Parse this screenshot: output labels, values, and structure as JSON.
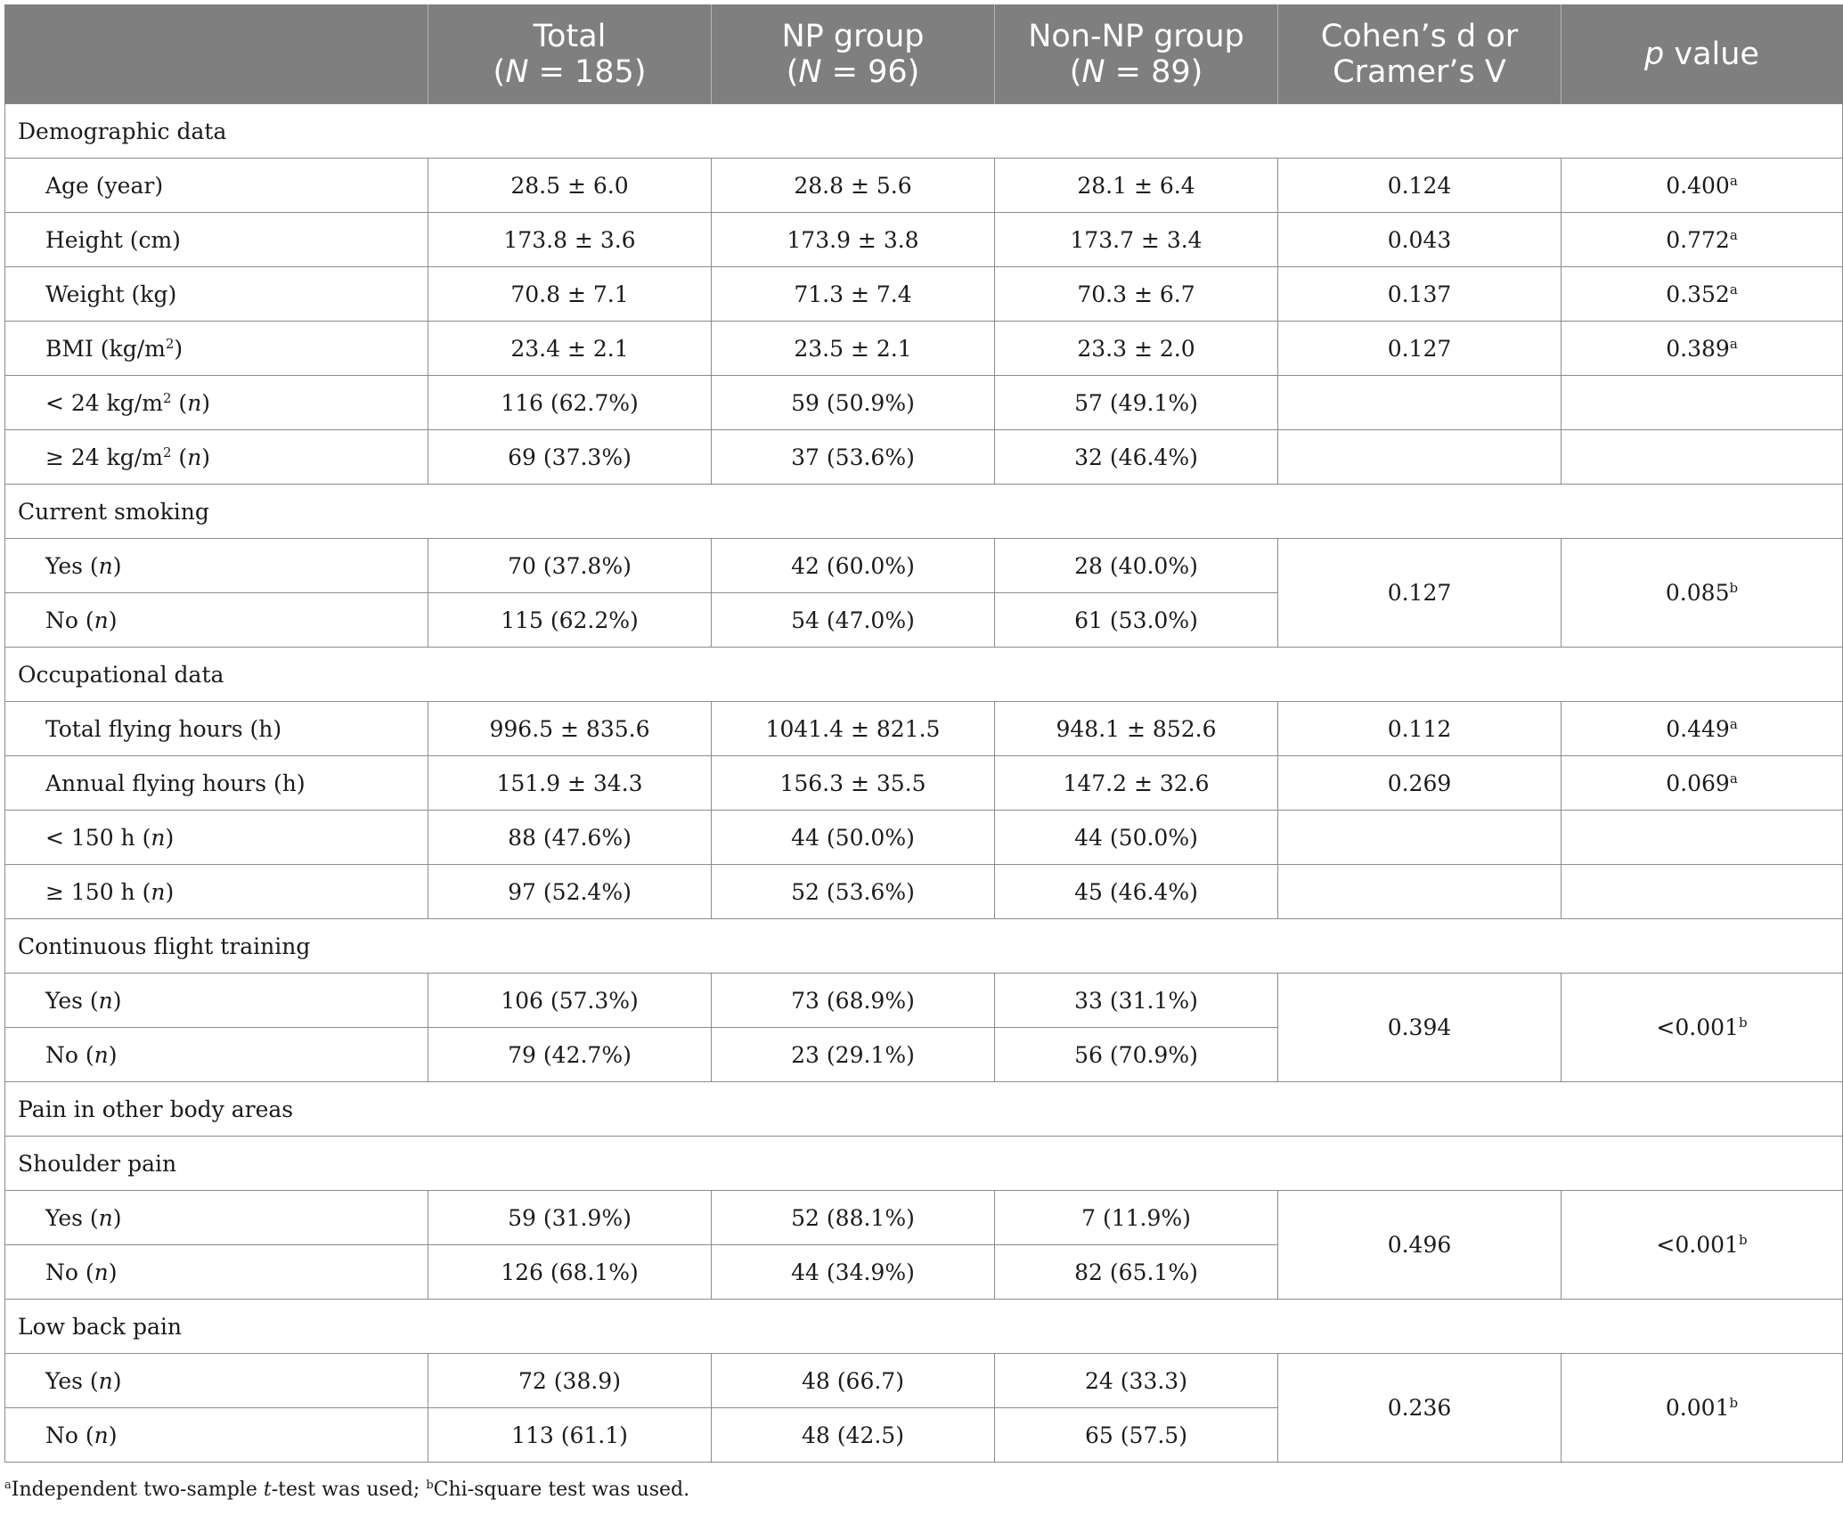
{
  "header": {
    "c0": "",
    "total_label": "Total",
    "total_n_pre": "(",
    "n_symbol": "N",
    "total_n_post": " = 185)",
    "np_label": "NP group",
    "np_n_post": " = 96)",
    "nonnp_label": "Non-NP group",
    "nonnp_n_post": " = 89)",
    "effect_line1": "Cohen’s d or",
    "effect_line2": "Cramer’s V",
    "p_symbol": "p",
    "p_rest": " value"
  },
  "sections": {
    "demographic": "Demographic data",
    "smoking": "Current smoking",
    "occupational": "Occupational data",
    "continuous": "Continuous flight training",
    "pain_other": "Pain in other body areas",
    "shoulder": "Shoulder pain",
    "lowback": "Low back pain"
  },
  "rows": {
    "age": {
      "label": "Age (year)",
      "total": "28.5 ± 6.0",
      "np": "28.8 ± 5.6",
      "nonnp": "28.1 ± 6.4",
      "effect": "0.124",
      "p": "0.400",
      "sup": "a"
    },
    "height": {
      "label": "Height (cm)",
      "total": "173.8 ± 3.6",
      "np": "173.9 ± 3.8",
      "nonnp": "173.7 ± 3.4",
      "effect": "0.043",
      "p": "0.772",
      "sup": "a"
    },
    "weight": {
      "label": "Weight (kg)",
      "total": "70.8 ± 7.1",
      "np": "71.3 ± 7.4",
      "nonnp": "70.3 ± 6.7",
      "effect": "0.137",
      "p": "0.352",
      "sup": "a"
    },
    "bmi": {
      "label_pre": "BMI (kg/m",
      "label_sup": "2",
      "label_post": ")",
      "total": "23.4 ± 2.1",
      "np": "23.5 ± 2.1",
      "nonnp": "23.3 ± 2.0",
      "effect": "0.127",
      "p": "0.389",
      "sup": "a"
    },
    "bmi_lt24": {
      "label_pre": "< 24 kg/m",
      "label_sup": "2",
      "label_post": " (",
      "n": "n",
      "close": ")",
      "total": "116 (62.7%)",
      "np": "59 (50.9%)",
      "nonnp": "57 (49.1%)"
    },
    "bmi_ge24": {
      "label_pre": "≥ 24 kg/m",
      "label_sup": "2",
      "label_post": " (",
      "n": "n",
      "close": ")",
      "total": "69 (37.3%)",
      "np": "37 (53.6%)",
      "nonnp": "32 (46.4%)"
    },
    "smoking_yes": {
      "label_pre": "Yes (",
      "n": "n",
      "close": ")",
      "total": "70 (37.8%)",
      "np": "42 (60.0%)",
      "nonnp": "28 (40.0%)",
      "effect": "0.127",
      "p": "0.085",
      "sup": "b"
    },
    "smoking_no": {
      "label_pre": "No (",
      "n": "n",
      "close": ")",
      "total": "115 (62.2%)",
      "np": "54 (47.0%)",
      "nonnp": "61 (53.0%)"
    },
    "total_hours": {
      "label": "Total flying hours (h)",
      "total": "996.5 ± 835.6",
      "np": "1041.4 ± 821.5",
      "nonnp": "948.1 ± 852.6",
      "effect": "0.112",
      "p": "0.449",
      "sup": "a"
    },
    "annual_hours": {
      "label": "Annual flying hours (h)",
      "total": "151.9 ± 34.3",
      "np": "156.3 ± 35.5",
      "nonnp": "147.2 ± 32.6",
      "effect": "0.269",
      "p": "0.069",
      "sup": "a"
    },
    "hours_lt150": {
      "label_pre": "< 150 h (",
      "n": "n",
      "close": ")",
      "total": "88 (47.6%)",
      "np": "44 (50.0%)",
      "nonnp": "44 (50.0%)"
    },
    "hours_ge150": {
      "label_pre": "≥ 150 h (",
      "n": "n",
      "close": ")",
      "total": "97 (52.4%)",
      "np": "52 (53.6%)",
      "nonnp": "45 (46.4%)"
    },
    "cont_yes": {
      "label_pre": "Yes (",
      "n": "n",
      "close": ")",
      "total": "106 (57.3%)",
      "np": "73 (68.9%)",
      "nonnp": "33 (31.1%)",
      "effect": "0.394",
      "p": "<0.001",
      "sup": "b"
    },
    "cont_no": {
      "label_pre": "No (",
      "n": "n",
      "close": ")",
      "total": "79 (42.7%)",
      "np": "23 (29.1%)",
      "nonnp": "56 (70.9%)"
    },
    "shoulder_yes": {
      "label_pre": "Yes (",
      "n": "n",
      "close": ")",
      "total": "59 (31.9%)",
      "np": "52 (88.1%)",
      "nonnp": "7 (11.9%)",
      "effect": "0.496",
      "p": "<0.001",
      "sup": "b"
    },
    "shoulder_no": {
      "label_pre": "No (",
      "n": "n",
      "close": ")",
      "total": "126 (68.1%)",
      "np": "44 (34.9%)",
      "nonnp": "82 (65.1%)"
    },
    "lowback_yes": {
      "label_pre": "Yes (",
      "n": "n",
      "close": ")",
      "total": "72 (38.9)",
      "np": "48 (66.7)",
      "nonnp": "24 (33.3)",
      "effect": "0.236",
      "p": "0.001",
      "sup": "b"
    },
    "lowback_no": {
      "label_pre": "No (",
      "n": "n",
      "close": ")",
      "total": "113 (61.1)",
      "np": "48 (42.5)",
      "nonnp": "65 (57.5)"
    }
  },
  "footnote": {
    "sup_a": "a",
    "part1": "Independent two-sample ",
    "t": "t",
    "part2": "-test was used; ",
    "sup_b": "b",
    "part3": "Chi-square test was used."
  }
}
